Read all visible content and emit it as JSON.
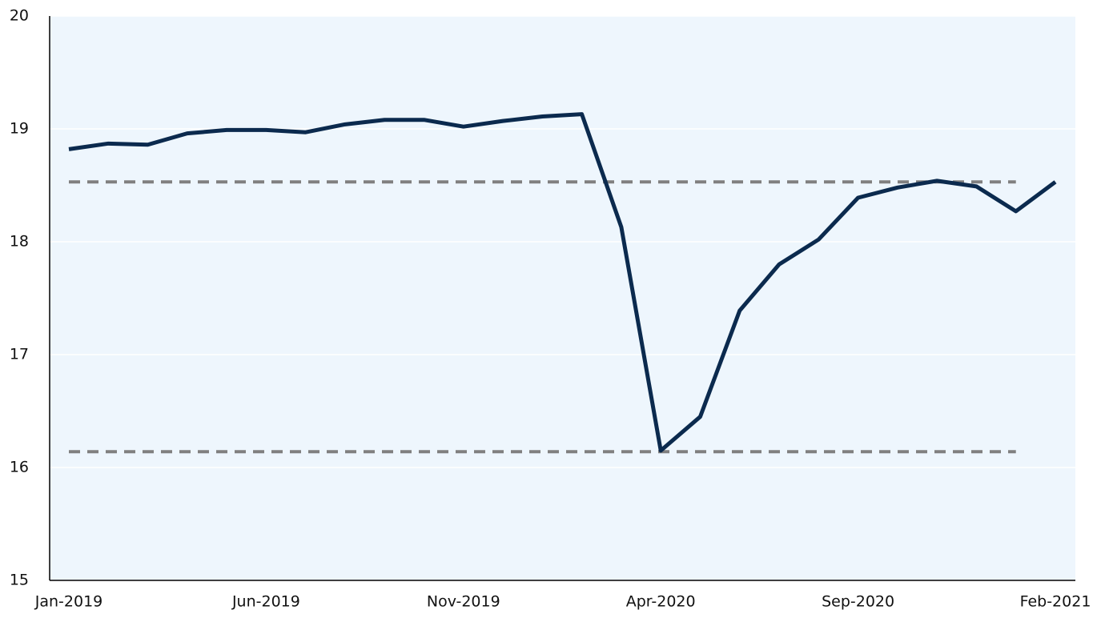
{
  "chart_data": {
    "type": "line",
    "categories": [
      "Jan-2019",
      null,
      null,
      null,
      null,
      "Jun-2019",
      null,
      null,
      null,
      null,
      "Nov-2019",
      null,
      null,
      null,
      null,
      "Apr-2020",
      null,
      null,
      null,
      null,
      "Sep-2020",
      null,
      null,
      null,
      null,
      "Feb-2021"
    ],
    "series": [
      {
        "color": "#0b2a4e",
        "values": [
          18.82,
          18.87,
          18.86,
          18.96,
          18.99,
          18.99,
          18.97,
          19.04,
          19.08,
          19.08,
          19.02,
          19.07,
          19.11,
          19.13,
          18.13,
          16.15,
          16.45,
          17.39,
          17.8,
          18.02,
          18.39,
          18.48,
          18.54,
          18.49,
          18.27,
          18.53
        ]
      }
    ],
    "reference_lines": [
      {
        "value": 18.53,
        "color": "#808080",
        "from_index": 0,
        "to_index": 24
      },
      {
        "value": 16.14,
        "color": "#808080",
        "from_index": 0,
        "to_index": 24
      }
    ],
    "ylim": [
      15,
      20
    ],
    "yticks": [
      15,
      16,
      17,
      18,
      19,
      20
    ],
    "grid": true
  }
}
